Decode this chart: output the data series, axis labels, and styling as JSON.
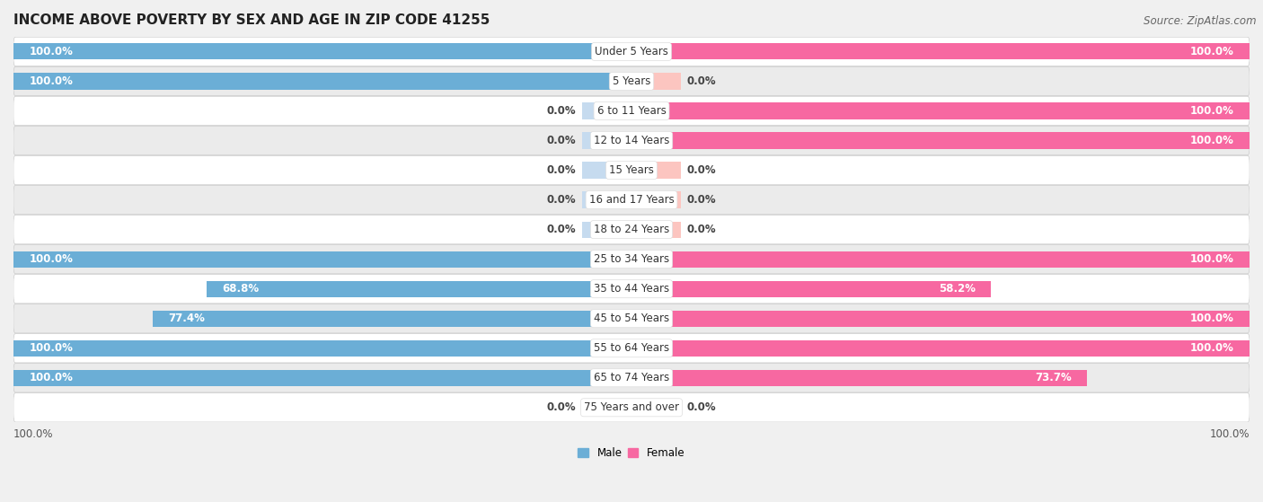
{
  "title": "INCOME ABOVE POVERTY BY SEX AND AGE IN ZIP CODE 41255",
  "source": "Source: ZipAtlas.com",
  "categories": [
    "Under 5 Years",
    "5 Years",
    "6 to 11 Years",
    "12 to 14 Years",
    "15 Years",
    "16 and 17 Years",
    "18 to 24 Years",
    "25 to 34 Years",
    "35 to 44 Years",
    "45 to 54 Years",
    "55 to 64 Years",
    "65 to 74 Years",
    "75 Years and over"
  ],
  "male": [
    100.0,
    100.0,
    0.0,
    0.0,
    0.0,
    0.0,
    0.0,
    100.0,
    68.8,
    77.4,
    100.0,
    100.0,
    0.0
  ],
  "female": [
    100.0,
    0.0,
    100.0,
    100.0,
    0.0,
    0.0,
    0.0,
    100.0,
    58.2,
    100.0,
    100.0,
    73.7,
    0.0
  ],
  "male_color": "#6baed6",
  "male_zero_color": "#c6dbef",
  "female_color": "#f768a1",
  "female_zero_color": "#fcc5c0",
  "bar_height": 0.55,
  "background_color": "#f0f0f0",
  "row_colors": [
    "#ffffff",
    "#ebebeb"
  ],
  "x_max": 100.0,
  "title_fontsize": 11,
  "label_fontsize": 8.5,
  "tick_fontsize": 8.5,
  "source_fontsize": 8.5
}
